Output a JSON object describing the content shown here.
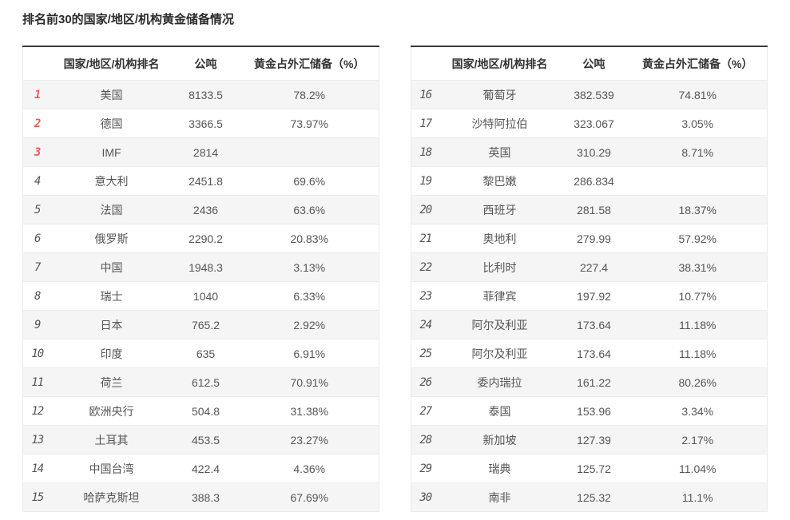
{
  "page": {
    "title": "排名前30的国家/地区/机构黄金储备情况"
  },
  "colors": {
    "accent_red": "#ee5a5a",
    "rank_gray": "#6b6b6b",
    "stripe_gray": "#f5f5f5",
    "border_dark": "#3a3a3a",
    "border_light": "#ececec",
    "text": "#555555",
    "heading": "#333333"
  },
  "chart_data": {
    "type": "table",
    "title": "排名前30的国家/地区/机构黄金储备情况",
    "columns": {
      "rank": "",
      "name": "国家/地区/机构排名",
      "tons": "公吨",
      "pct": "黄金占外汇储备（%）"
    },
    "layout": {
      "split": "two tables side by side",
      "left_rows": "ranks 1-15",
      "right_rows": "ranks 16-30",
      "top3_rank_color": "#ee5a5a",
      "stripe": "odd rows light gray"
    },
    "rows": [
      {
        "rank": "1",
        "name": "美国",
        "tons": "8133.5",
        "pct": "78.2%"
      },
      {
        "rank": "2",
        "name": "德国",
        "tons": "3366.5",
        "pct": "73.97%"
      },
      {
        "rank": "3",
        "name": "IMF",
        "tons": "2814",
        "pct": ""
      },
      {
        "rank": "4",
        "name": "意大利",
        "tons": "2451.8",
        "pct": "69.6%"
      },
      {
        "rank": "5",
        "name": "法国",
        "tons": "2436",
        "pct": "63.6%"
      },
      {
        "rank": "6",
        "name": "俄罗斯",
        "tons": "2290.2",
        "pct": "20.83%"
      },
      {
        "rank": "7",
        "name": "中国",
        "tons": "1948.3",
        "pct": "3.13%"
      },
      {
        "rank": "8",
        "name": "瑞士",
        "tons": "1040",
        "pct": "6.33%"
      },
      {
        "rank": "9",
        "name": "日本",
        "tons": "765.2",
        "pct": "2.92%"
      },
      {
        "rank": "10",
        "name": "印度",
        "tons": "635",
        "pct": "6.91%"
      },
      {
        "rank": "11",
        "name": "荷兰",
        "tons": "612.5",
        "pct": "70.91%"
      },
      {
        "rank": "12",
        "name": "欧洲央行",
        "tons": "504.8",
        "pct": "31.38%"
      },
      {
        "rank": "13",
        "name": "土耳其",
        "tons": "453.5",
        "pct": "23.27%"
      },
      {
        "rank": "14",
        "name": "中国台湾",
        "tons": "422.4",
        "pct": "4.36%"
      },
      {
        "rank": "15",
        "name": "哈萨克斯坦",
        "tons": "388.3",
        "pct": "67.69%"
      },
      {
        "rank": "16",
        "name": "葡萄牙",
        "tons": "382.539",
        "pct": "74.81%"
      },
      {
        "rank": "17",
        "name": "沙特阿拉伯",
        "tons": "323.067",
        "pct": "3.05%"
      },
      {
        "rank": "18",
        "name": "英国",
        "tons": "310.29",
        "pct": "8.71%"
      },
      {
        "rank": "19",
        "name": "黎巴嫩",
        "tons": "286.834",
        "pct": ""
      },
      {
        "rank": "20",
        "name": "西班牙",
        "tons": "281.58",
        "pct": "18.37%"
      },
      {
        "rank": "21",
        "name": "奥地利",
        "tons": "279.99",
        "pct": "57.92%"
      },
      {
        "rank": "22",
        "name": "比利时",
        "tons": "227.4",
        "pct": "38.31%"
      },
      {
        "rank": "23",
        "name": "菲律宾",
        "tons": "197.92",
        "pct": "10.77%"
      },
      {
        "rank": "24",
        "name": "阿尔及利亚",
        "tons": "173.64",
        "pct": "11.18%"
      },
      {
        "rank": "25",
        "name": "阿尔及利亚",
        "tons": "173.64",
        "pct": "11.18%"
      },
      {
        "rank": "26",
        "name": "委内瑞拉",
        "tons": "161.22",
        "pct": "80.26%"
      },
      {
        "rank": "27",
        "name": "泰国",
        "tons": "153.96",
        "pct": "3.34%"
      },
      {
        "rank": "28",
        "name": "新加坡",
        "tons": "127.39",
        "pct": "2.17%"
      },
      {
        "rank": "29",
        "name": "瑞典",
        "tons": "125.72",
        "pct": "11.04%"
      },
      {
        "rank": "30",
        "name": "南非",
        "tons": "125.32",
        "pct": "11.1%"
      }
    ]
  }
}
